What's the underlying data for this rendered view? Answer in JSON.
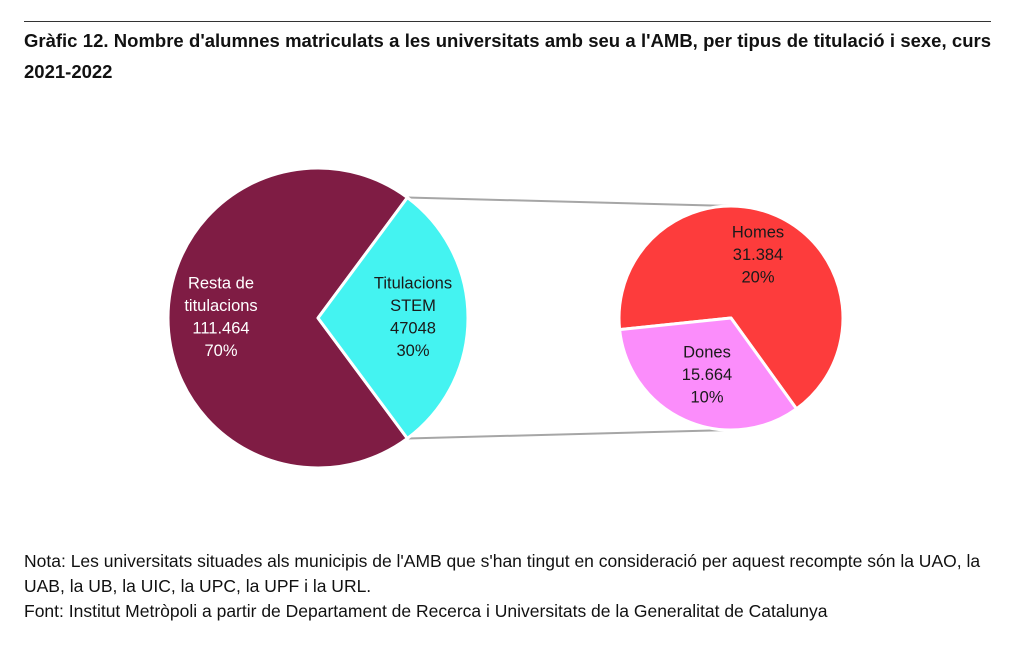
{
  "title": "Gràfic 12. Nombre d'alumnes matriculats a les universitats amb seu a l'AMB, per tipus de titulació i sexe, curs 2021-2022",
  "note": "Nota: Les universitats situades als municipis de l'AMB que s'han tingut en consideració per aquest recompte són la UAO, la UAB, la UB, la UIC, la UPC, la UPF i la URL.",
  "source": "Font: Institut Metròpoli a partir de Departament de Recerca i Universitats de la Generalitat de Catalunya",
  "chart_data": [
    {
      "type": "pie",
      "slices": [
        {
          "lines": [
            "Resta de",
            "titulacions"
          ],
          "value_label": "111.464",
          "percent_label": "70%",
          "value": 111464,
          "percent": 70,
          "color": "#7f1c44"
        },
        {
          "lines": [
            "Titulacions",
            "STEM"
          ],
          "value_label": "47048",
          "percent_label": "30%",
          "value": 47048,
          "percent": 30,
          "color": "#44f3f1"
        }
      ]
    },
    {
      "type": "pie",
      "breakdown_of": "Titulacions STEM",
      "slices": [
        {
          "lines": [
            "Homes"
          ],
          "value_label": "31.384",
          "percent_label": "20%",
          "value": 31384,
          "percent": 20,
          "color": "#fd3c3c"
        },
        {
          "lines": [
            "Dones"
          ],
          "value_label": "15.664",
          "percent_label": "10%",
          "value": 15664,
          "percent": 10,
          "color": "#fb8dfb"
        }
      ]
    }
  ]
}
